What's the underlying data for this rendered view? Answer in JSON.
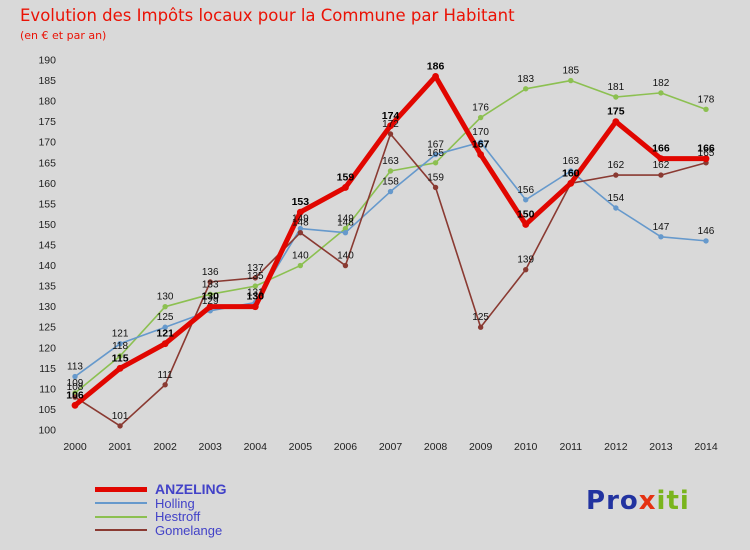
{
  "header": {
    "title": "Evolution des Impôts locaux pour la Commune par Habitant",
    "subtitle": "(en € et par an)",
    "title_color": "#ea1205"
  },
  "chart_data": {
    "type": "line",
    "title": "Evolution des Impôts locaux pour la Commune par Habitant",
    "subtitle": "(en € et par an)",
    "x": [
      2000,
      2001,
      2002,
      2003,
      2004,
      2005,
      2006,
      2007,
      2008,
      2009,
      2010,
      2011,
      2012,
      2013,
      2014
    ],
    "ylim": [
      100,
      190
    ],
    "ytick_step": 5,
    "grid": false,
    "legend_position": "bottom-left",
    "background_color": "#d9d9d9",
    "series": [
      {
        "name": "ANZELING",
        "color": "#e10600",
        "line_width": 5,
        "values": [
          106,
          115,
          121,
          130,
          130,
          153,
          159,
          174,
          186,
          167,
          150,
          160,
          175,
          166,
          166
        ]
      },
      {
        "name": "Holling",
        "color": "#6699cc",
        "line_width": 1.6,
        "values": [
          113,
          121,
          125,
          129,
          131,
          149,
          148,
          158,
          167,
          170,
          156,
          163,
          154,
          147,
          146
        ]
      },
      {
        "name": "Hestroff",
        "color": "#8cc051",
        "line_width": 1.6,
        "values": [
          109,
          118,
          130,
          133,
          135,
          140,
          149,
          163,
          165,
          176,
          183,
          185,
          181,
          182,
          178
        ]
      },
      {
        "name": "Gomelange",
        "color": "#8a3a32",
        "line_width": 1.6,
        "values": [
          108,
          101,
          111,
          136,
          137,
          148,
          140,
          172,
          159,
          125,
          139,
          160,
          162,
          162,
          165
        ]
      }
    ]
  },
  "legend": {
    "text_color": "#4242c8",
    "items": [
      "ANZELING",
      "Holling",
      "Hestroff",
      "Gomelange"
    ]
  },
  "logo": {
    "letters": [
      {
        "ch": "P",
        "color": "#2233a0"
      },
      {
        "ch": "r",
        "color": "#2233a0"
      },
      {
        "ch": "o",
        "color": "#2233a0"
      },
      {
        "ch": "x",
        "color": "#e53212"
      },
      {
        "ch": "i",
        "color": "#7ab51d"
      },
      {
        "ch": "t",
        "color": "#7ab51d"
      },
      {
        "ch": "i",
        "color": "#7ab51d"
      }
    ]
  }
}
